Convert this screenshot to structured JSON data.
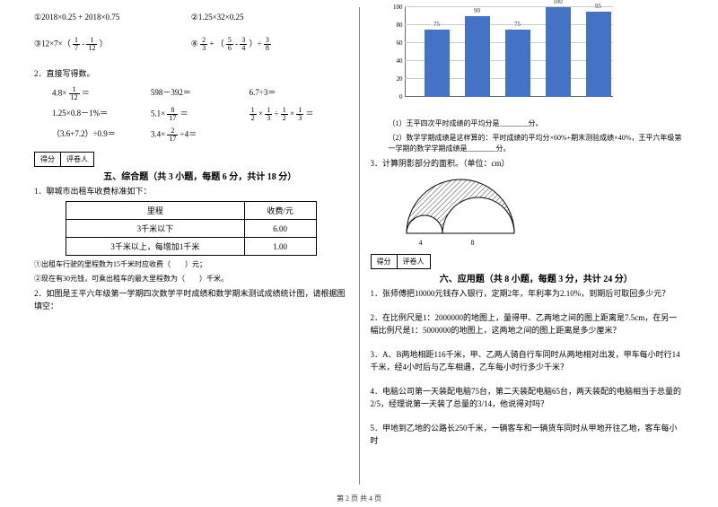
{
  "left": {
    "eq1a": "①2018×0.25 + 2018×0.75",
    "eq1b": "②1.25×32×0.25",
    "eq2a_pre": "③12×7×（",
    "eq2a_f1n": "1",
    "eq2a_f1d": "7",
    "eq2a_mid": " - ",
    "eq2a_f2n": "1",
    "eq2a_f2d": "12",
    "eq2a_post": "）",
    "eq2b_pre": "④",
    "eq2b_f1n": "2",
    "eq2b_f1d": "3",
    "eq2b_p1": " + （",
    "eq2b_f2n": "5",
    "eq2b_f2d": "6",
    "eq2b_p2": " - ",
    "eq2b_f3n": "3",
    "eq2b_f3d": "4",
    "eq2b_p3": "）÷",
    "eq2b_f4n": "3",
    "eq2b_f4d": "8",
    "mental_title": "2．直接写得数。",
    "m1a_pre": "4.8×",
    "m1a_fn": "1",
    "m1a_fd": "12",
    "m1a_post": "＝",
    "m1b": "598－392＝",
    "m1c": "6.7÷3＝",
    "m2a": "1.25×0.8－1%＝",
    "m2b_pre": "5.1×",
    "m2b_fn": "8",
    "m2b_fd": "17",
    "m2b_post": "＝",
    "m2c_f1n": "1",
    "m2c_f1d": "2",
    "m2c_s1": "×",
    "m2c_f2n": "1",
    "m2c_f2d": "3",
    "m2c_s2": "÷",
    "m2c_f3n": "1",
    "m2c_f3d": "2",
    "m2c_s3": "×",
    "m2c_f4n": "1",
    "m2c_f4d": "3",
    "m2c_post": "＝",
    "m3a": "（3.6+7.2）÷0.9＝",
    "m3b_pre": "3.4×",
    "m3b_fn": "2",
    "m3b_fd": "17",
    "m3b_post": "÷4＝",
    "score1": "得分",
    "score2": "评卷人",
    "sec5_title": "五、综合题（共 3 小题，每题 6 分，共计 18 分）",
    "q1": "1．聊城市出租车收费标准如下：",
    "th1": "里程",
    "th2": "收费/元",
    "tr1a": "3千米以下",
    "tr1b": "6.00",
    "tr2a": "3千米以上，每增加1千米",
    "tr2b": "1.00",
    "q1a": "①出租车行驶的里程数为15千米时应收费（　　）元；",
    "q1b": "②现在有30元钱，可乘出租车的最大里程数为（　　）千米。",
    "q2": "2．如图是王平六年级第一学期四次数学平时成绩和数学期末测试成绩统计图，请根据图填空："
  },
  "right": {
    "chart": {
      "y_ticks": [
        "0",
        "20",
        "40",
        "60",
        "80",
        "100"
      ],
      "bars": [
        {
          "val": 75,
          "label": "75",
          "x": 40
        },
        {
          "val": 90,
          "label": "90",
          "x": 85
        },
        {
          "val": 75,
          "label": "75",
          "x": 130
        },
        {
          "val": 100,
          "label": "100",
          "x": 175
        },
        {
          "val": 95,
          "label": "95",
          "x": 220
        }
      ],
      "bar_color": "#4472c4",
      "grid_color": "#cccccc"
    },
    "q2_1": "（1）王平四次平时成绩的平均分是________分。",
    "q2_2": "（2）数学学期成绩是这样算的：平时成绩的平均分×60%+期末测验成绩×40%，王平六年级第一学期的数学学期成绩是________分。",
    "q3": "3．计算阴影部分的面积。（单位：cm）",
    "arch_l": "4",
    "arch_r": "8",
    "score1": "得分",
    "score2": "评卷人",
    "sec6_title": "六、应用题（共 8 小题，每题 3 分，共计 24 分）",
    "a1": "1．张师傅把10000元钱存入银行，定期2年，年利率为2.10%，到期后可取回多少元？",
    "a2": "2．在比例尺是1：2000000的地图上，量得甲、乙两地之间的图上距离是7.5cm，在另一幅比例尺是1：5000000的地图上，这两地之间的图上距离是多少厘米？",
    "a3": "3．A、B两地相距116千米，甲、乙两人骑自行车同时从两地相对出发，甲车每小时行14千米，经4小时后与乙车相遇，乙车每小时行多少千米？",
    "a4": "4．电脑公司第一天装配电脑75台，第二天装配电脑65台，两天装配的电脑相当于总量的2/5，经理说第一天装了总量的3/14，他说得对吗？",
    "a5": "5．甲地到乙地的公路长250千米，一辆客车和一辆货车同时从甲地开往乙地，客车每小时"
  },
  "footer": "第 2 页 共 4 页"
}
